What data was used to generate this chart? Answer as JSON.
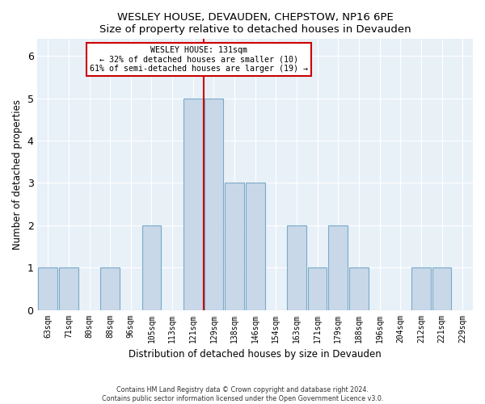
{
  "title": "WESLEY HOUSE, DEVAUDEN, CHEPSTOW, NP16 6PE",
  "subtitle": "Size of property relative to detached houses in Devauden",
  "xlabel": "Distribution of detached houses by size in Devauden",
  "ylabel": "Number of detached properties",
  "categories": [
    "63sqm",
    "71sqm",
    "80sqm",
    "88sqm",
    "96sqm",
    "105sqm",
    "113sqm",
    "121sqm",
    "129sqm",
    "138sqm",
    "146sqm",
    "154sqm",
    "163sqm",
    "171sqm",
    "179sqm",
    "188sqm",
    "196sqm",
    "204sqm",
    "212sqm",
    "221sqm",
    "229sqm"
  ],
  "bar_heights": [
    1,
    1,
    0,
    1,
    0,
    2,
    0,
    5,
    5,
    3,
    3,
    0,
    2,
    1,
    2,
    1,
    0,
    0,
    1,
    1,
    0
  ],
  "bar_color": "#c8d8e8",
  "bar_edge_color": "#7aaac8",
  "vline_x_index": 7.5,
  "ylim": [
    0,
    6.4
  ],
  "yticks": [
    0,
    1,
    2,
    3,
    4,
    5,
    6
  ],
  "vline_color": "#cc0000",
  "background_color": "#e8f0f8",
  "grid_color": "#ffffff",
  "annotation_line1": "WESLEY HOUSE: 131sqm",
  "annotation_line2": "← 32% of detached houses are smaller (10)",
  "annotation_line3": "61% of semi-detached houses are larger (19) →",
  "footer_line1": "Contains HM Land Registry data © Crown copyright and database right 2024.",
  "footer_line2": "Contains public sector information licensed under the Open Government Licence v3.0."
}
